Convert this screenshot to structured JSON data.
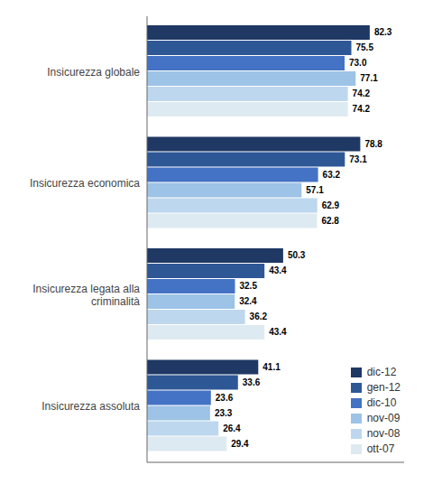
{
  "chart_data": {
    "type": "bar",
    "orientation": "horizontal",
    "categories": [
      "Insicurezza globale",
      "Insicurezza economica",
      "Insicurezza legata alla\ncriminalità",
      "Insicurezza assoluta"
    ],
    "series": [
      {
        "name": "dic-12",
        "color": "#1F3864",
        "values": [
          82.3,
          78.8,
          50.3,
          41.1
        ]
      },
      {
        "name": "gen-12",
        "color": "#2E5796",
        "values": [
          75.5,
          73.1,
          43.4,
          33.6
        ]
      },
      {
        "name": "dic-10",
        "color": "#4472C4",
        "values": [
          73.0,
          63.2,
          32.5,
          23.6
        ],
        "value_labels": [
          "73.0",
          "63.2",
          "32.5",
          "23.6"
        ]
      },
      {
        "name": "nov-09",
        "color": "#9DC3E6",
        "values": [
          77.1,
          57.1,
          32.4,
          23.3
        ]
      },
      {
        "name": "nov-08",
        "color": "#BDD7EE",
        "values": [
          74.2,
          62.9,
          36.2,
          26.4
        ]
      },
      {
        "name": "ott-07",
        "color": "#DEEAF1",
        "values": [
          74.2,
          62.8,
          43.4,
          29.4
        ]
      }
    ],
    "xlim": [
      0,
      95
    ],
    "data_labels": true,
    "tick_labels": "y",
    "grid": false,
    "legend": "lower right"
  }
}
